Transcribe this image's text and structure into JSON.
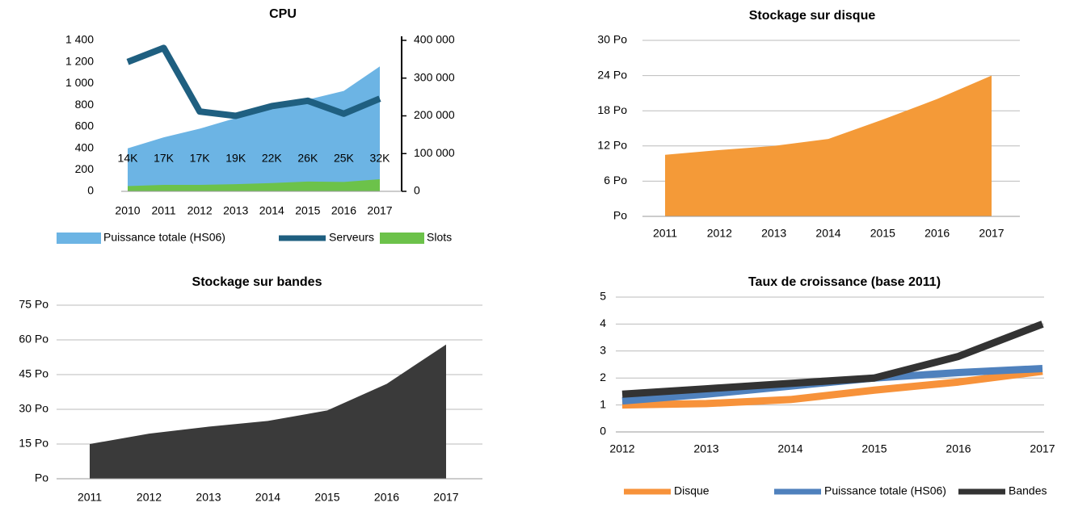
{
  "chart_data": [
    {
      "type": "combo",
      "title": "CPU",
      "categories": [
        "2010",
        "2011",
        "2012",
        "2013",
        "2014",
        "2015",
        "2016",
        "2017"
      ],
      "ylim": [
        0,
        1400
      ],
      "yticks": [
        0,
        200,
        400,
        600,
        800,
        {
          "value": 1000,
          "label": "1 000"
        },
        {
          "value": 1200,
          "label": "1 200"
        },
        {
          "value": 1400,
          "label": "1 400"
        }
      ],
      "y2lim": [
        0,
        400000
      ],
      "y2ticks": [
        0,
        {
          "value": 100000,
          "label": "100 000"
        },
        {
          "value": 200000,
          "label": "200 000"
        },
        {
          "value": 300000,
          "label": "300 000"
        },
        {
          "value": 400000,
          "label": "400 000"
        }
      ],
      "grid": false,
      "legend": "bottom",
      "series": [
        {
          "name": "Puissance totale (HS06)",
          "type": "area",
          "axis": "y2",
          "color": "#6cb4e4",
          "values": [
            114000,
            143000,
            166000,
            194000,
            217000,
            243000,
            266000,
            331000
          ]
        },
        {
          "name": "Serveurs",
          "type": "line",
          "color": "#1f5f80",
          "values": [
            1200,
            1330,
            740,
            700,
            790,
            840,
            720,
            860
          ]
        },
        {
          "name": "Slots",
          "type": "area",
          "axis": "y2",
          "color": "#6cc24a",
          "values": [
            14000,
            17000,
            17000,
            19000,
            22000,
            26000,
            25000,
            32000
          ],
          "value_labels": [
            "14K",
            "17K",
            "17K",
            "19K",
            "22K",
            "26K",
            "25K",
            "32K"
          ]
        }
      ]
    },
    {
      "type": "area",
      "title": "Stockage sur disque",
      "categories": [
        "2011",
        "2012",
        "2013",
        "2014",
        "2015",
        "2016",
        "2017"
      ],
      "ylim": [
        0,
        30
      ],
      "yticks": [
        {
          "value": 0,
          "label": "Po"
        },
        {
          "value": 6,
          "label": "6 Po"
        },
        {
          "value": 12,
          "label": "12 Po"
        },
        {
          "value": 18,
          "label": "18 Po"
        },
        {
          "value": 24,
          "label": "24 Po"
        },
        {
          "value": 30,
          "label": "30 Po"
        }
      ],
      "grid": true,
      "series": [
        {
          "color": "#f49a38",
          "values": [
            10.5,
            11.3,
            12,
            13.2,
            16.5,
            20,
            24
          ]
        }
      ]
    },
    {
      "type": "area",
      "title": "Stockage sur bandes",
      "categories": [
        "2011",
        "2012",
        "2013",
        "2014",
        "2015",
        "2016",
        "2017"
      ],
      "ylim": [
        0,
        75
      ],
      "yticks": [
        {
          "value": 0,
          "label": "Po"
        },
        {
          "value": 15,
          "label": "15 Po"
        },
        {
          "value": 30,
          "label": "30 Po"
        },
        {
          "value": 45,
          "label": "45 Po"
        },
        {
          "value": 60,
          "label": "60 Po"
        },
        {
          "value": 75,
          "label": "75 Po"
        }
      ],
      "grid": true,
      "series": [
        {
          "color": "#3a3a3a",
          "values": [
            15,
            19.5,
            22.5,
            25,
            29.5,
            41,
            58
          ]
        }
      ]
    },
    {
      "type": "line",
      "title": "Taux de croissance (base 2011)",
      "categories": [
        "2012",
        "2013",
        "2014",
        "2015",
        "2016",
        "2017"
      ],
      "ylim": [
        0,
        5
      ],
      "yticks": [
        0,
        1,
        2,
        3,
        4,
        5
      ],
      "grid": true,
      "legend": "bottom",
      "series": [
        {
          "name": "Disque",
          "color": "#f7923a",
          "values": [
            1.0,
            1.05,
            1.2,
            1.55,
            1.85,
            2.25
          ]
        },
        {
          "name": "Puissance totale (HS06)",
          "color": "#4f81bd",
          "values": [
            1.15,
            1.4,
            1.7,
            2.0,
            2.2,
            2.35
          ]
        },
        {
          "name": "Bandes",
          "color": "#333333",
          "values": [
            1.4,
            1.6,
            1.8,
            2.0,
            2.8,
            4.0
          ]
        }
      ]
    }
  ]
}
